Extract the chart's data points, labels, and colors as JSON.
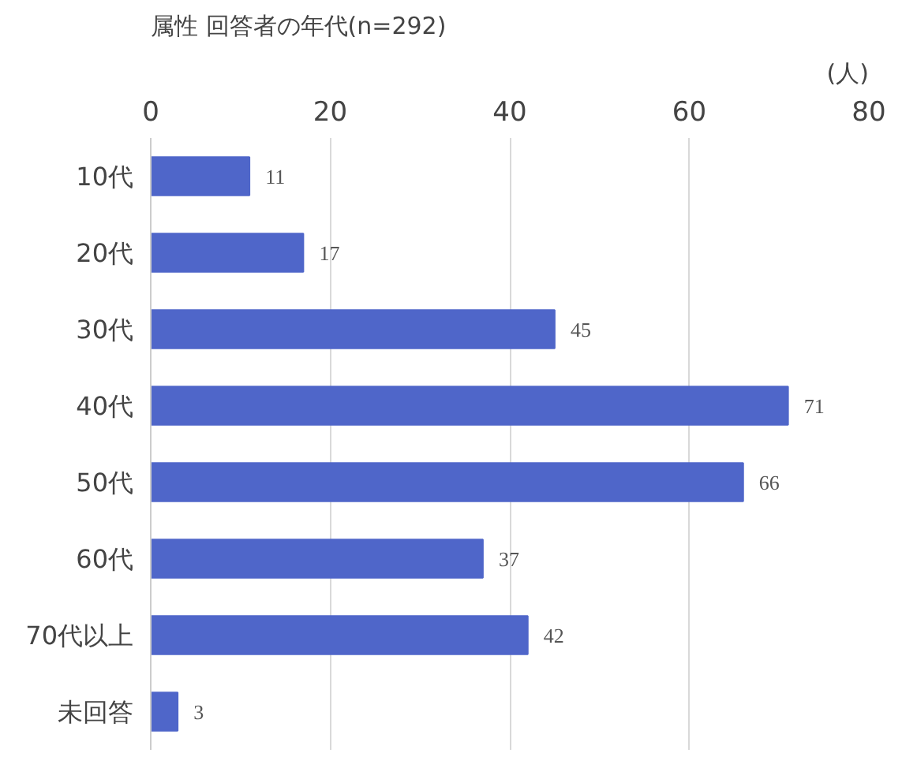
{
  "chart_data": {
    "type": "bar",
    "orientation": "horizontal",
    "title": "属性 回答者の年代(n=292)",
    "xlabel": "(人)",
    "categories": [
      "10代",
      "20代",
      "30代",
      "40代",
      "50代",
      "60代",
      "70代以上",
      "未回答"
    ],
    "values": [
      11,
      17,
      45,
      71,
      66,
      37,
      42,
      3
    ],
    "color": "#4f66c9",
    "xlim": [
      0,
      80
    ],
    "xticks": [
      0,
      20,
      40,
      60,
      80
    ],
    "grid": "x",
    "data_labels": true
  }
}
